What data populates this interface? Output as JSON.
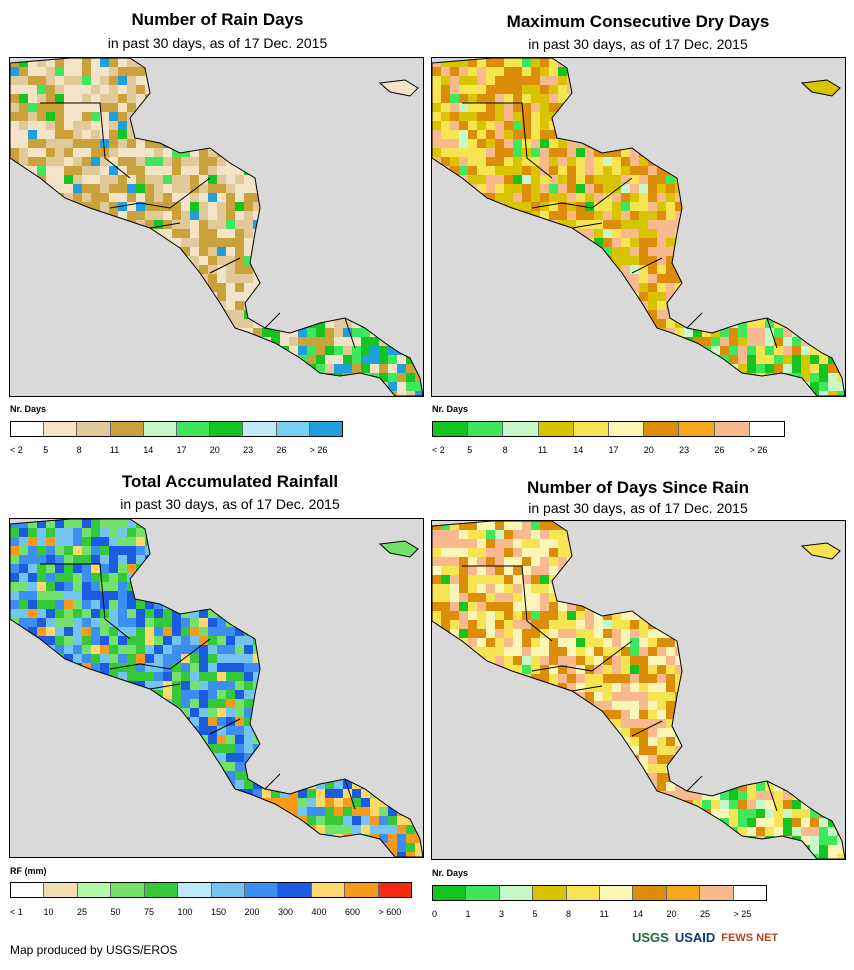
{
  "panels": [
    {
      "title": "Number of Rain Days",
      "subtitle": "in past 30 days, as of 17 Dec. 2015",
      "legend_title": "Nr. Days",
      "legend_labels": [
        "< 2",
        "5",
        "8",
        "11",
        "14",
        "17",
        "20",
        "23",
        "26",
        "> 26"
      ],
      "legend_colors": [
        "#ffffff",
        "#f5e3c8",
        "#e2c99a",
        "#c9a23c",
        "#c8f7c8",
        "#3ee85a",
        "#16c421",
        "#bfecf7",
        "#77cff1",
        "#1f9fdc"
      ],
      "dominant_colors": [
        "#f5e3c8",
        "#e2c99a",
        "#c9a23c"
      ],
      "accent_colors": [
        "#3ee85a",
        "#16c421",
        "#1f9fdc"
      ]
    },
    {
      "title": "Maximum Consecutive Dry Days",
      "subtitle": "in past 30 days, as of 17 Dec. 2015",
      "legend_title": "Nr. Days",
      "legend_labels": [
        "< 2",
        "5",
        "8",
        "11",
        "14",
        "17",
        "20",
        "23",
        "26",
        "> 26"
      ],
      "legend_colors": [
        "#16c421",
        "#3ee85a",
        "#c8f7c8",
        "#d8c400",
        "#f7e453",
        "#fbf6b8",
        "#dc8e0a",
        "#f5a61a",
        "#f8b98f",
        "#ffffff"
      ],
      "dominant_colors": [
        "#d8c400",
        "#f7e453",
        "#dc8e0a",
        "#f8b98f"
      ],
      "accent_colors": [
        "#c8f7c8",
        "#3ee85a",
        "#16c421"
      ]
    },
    {
      "title": "Total Accumulated Rainfall",
      "subtitle": "in past 30 days, as of 17 Dec. 2015",
      "legend_title": "RF (mm)",
      "legend_labels": [
        "< 1",
        "10",
        "25",
        "50",
        "75",
        "100",
        "150",
        "200",
        "300",
        "400",
        "600",
        "> 600"
      ],
      "legend_colors": [
        "#ffffff",
        "#f2dfb8",
        "#b6f7a8",
        "#74e26a",
        "#35c93a",
        "#bde9f8",
        "#74c3f3",
        "#3c8ef0",
        "#1c5ce0",
        "#fcd96a",
        "#f59a1a",
        "#f52a10"
      ],
      "dominant_colors": [
        "#74e26a",
        "#35c93a",
        "#74c3f3",
        "#3c8ef0",
        "#1c5ce0"
      ],
      "accent_colors": [
        "#fcd96a",
        "#f59a1a"
      ]
    },
    {
      "title": "Number of Days Since Rain",
      "subtitle": "in past 30 days, as of 17 Dec. 2015",
      "legend_title": "Nr. Days",
      "legend_labels": [
        "0",
        "1",
        "3",
        "5",
        "8",
        "11",
        "14",
        "20",
        "25",
        "> 25"
      ],
      "legend_colors": [
        "#16c421",
        "#3ee85a",
        "#c8f7c8",
        "#d8c400",
        "#f7e453",
        "#fbf6b8",
        "#dc8e0a",
        "#f5a61a",
        "#f8b98f",
        "#ffffff"
      ],
      "dominant_colors": [
        "#f7e453",
        "#fbf6b8",
        "#dc8e0a",
        "#f8b98f"
      ],
      "accent_colors": [
        "#c8f7c8",
        "#3ee85a",
        "#16c421"
      ]
    }
  ],
  "footer": "Map produced by USGS/EROS",
  "logos": [
    "USGS",
    "USAID",
    "FEWS NET"
  ],
  "colors": {
    "ocean": "#d9d9d9",
    "border": "#000000"
  }
}
